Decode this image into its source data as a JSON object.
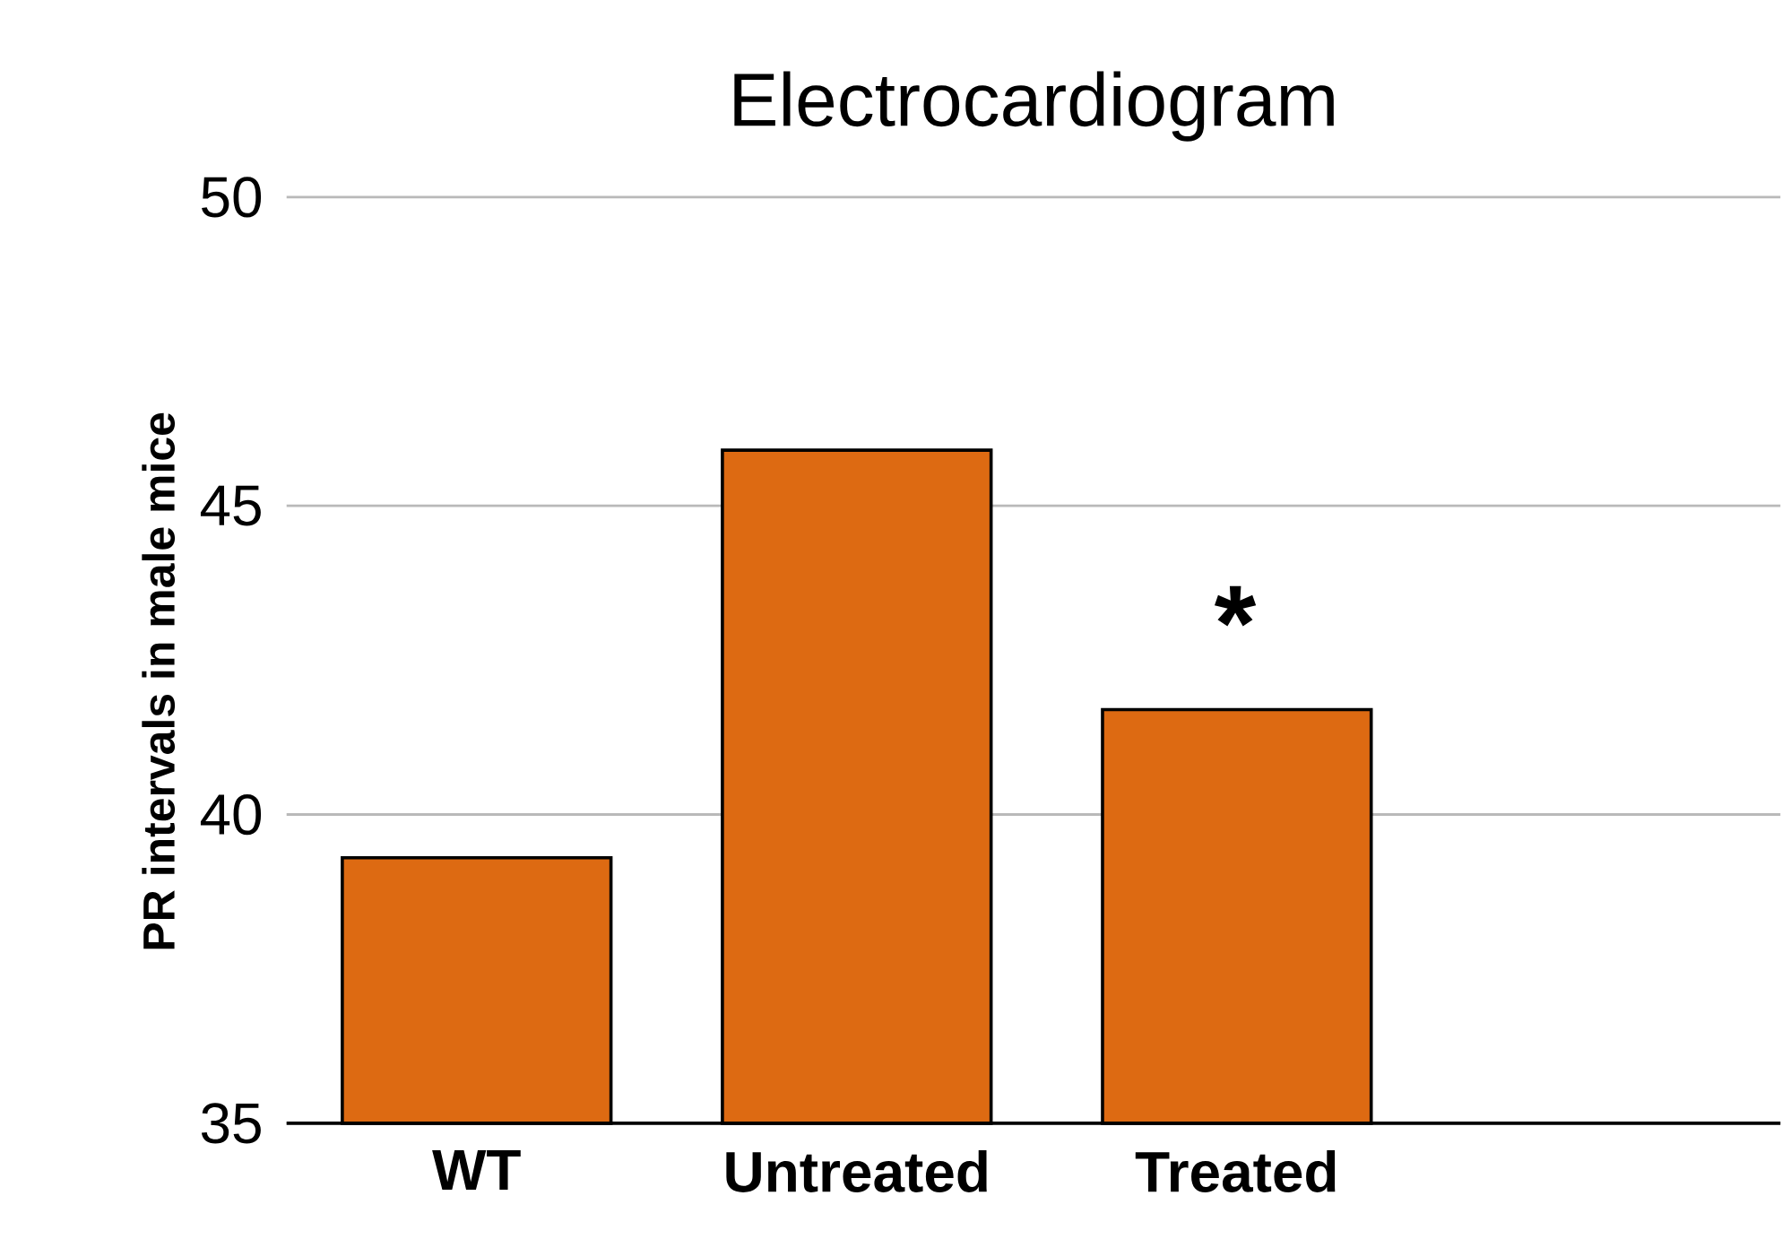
{
  "chart_data": {
    "type": "bar",
    "title": "Electrocardiogram",
    "ylabel": "PR intervals in male mice",
    "categories": [
      "WT",
      "Untreated",
      "Treated"
    ],
    "values": [
      39.3,
      45.9,
      41.7
    ],
    "color": "#dd6a12",
    "ylim": [
      35,
      50
    ],
    "yticks": [
      35,
      40,
      45,
      50
    ],
    "grid": "y",
    "annotations": [
      "*"
    ]
  }
}
